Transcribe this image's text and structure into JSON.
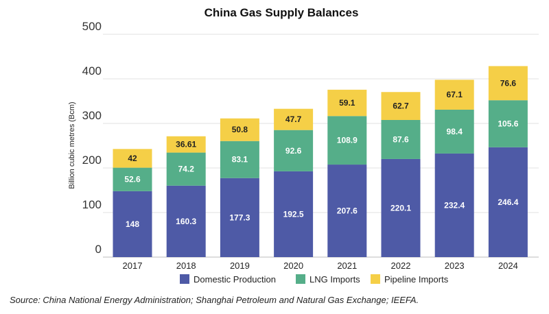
{
  "chart_data": {
    "type": "bar",
    "stacked": true,
    "title": "China Gas Supply Balances",
    "xlabel": "",
    "ylabel": "Billion cubic metres (Bcm)",
    "ylim": [
      0,
      500
    ],
    "yticks": [
      0,
      100,
      200,
      300,
      400,
      500
    ],
    "grid": true,
    "legend_position": "bottom",
    "categories": [
      "2017",
      "2018",
      "2019",
      "2020",
      "2021",
      "2022",
      "2023",
      "2024"
    ],
    "series": [
      {
        "name": "Domestic Production",
        "color": "#4E5AA6",
        "label_color": "#ffffff",
        "values": [
          148,
          160.3,
          177.3,
          192.5,
          207.6,
          220.1,
          232.4,
          246.4
        ],
        "labels": [
          "148",
          "160.3",
          "177.3",
          "192.5",
          "207.6",
          "220.1",
          "232.4",
          "246.4"
        ]
      },
      {
        "name": "LNG Imports",
        "color": "#55AE89",
        "label_color": "#ffffff",
        "values": [
          52.6,
          74.2,
          83.1,
          92.6,
          108.9,
          87.6,
          98.4,
          105.6
        ],
        "labels": [
          "52.6",
          "74.2",
          "83.1",
          "92.6",
          "108.9",
          "87.6",
          "98.4",
          "105.6"
        ]
      },
      {
        "name": "Pipeline Imports",
        "color": "#F5CF47",
        "label_color": "#222222",
        "values": [
          42,
          36.61,
          50.8,
          47.7,
          59.1,
          62.7,
          67.1,
          76.6
        ],
        "labels": [
          "42",
          "36.61",
          "50.8",
          "47.7",
          "59.1",
          "62.7",
          "67.1",
          "76.6"
        ]
      }
    ]
  },
  "source_note": "Source: China National Energy Administration; Shanghai Petroleum and Natural Gas Exchange; IEEFA."
}
